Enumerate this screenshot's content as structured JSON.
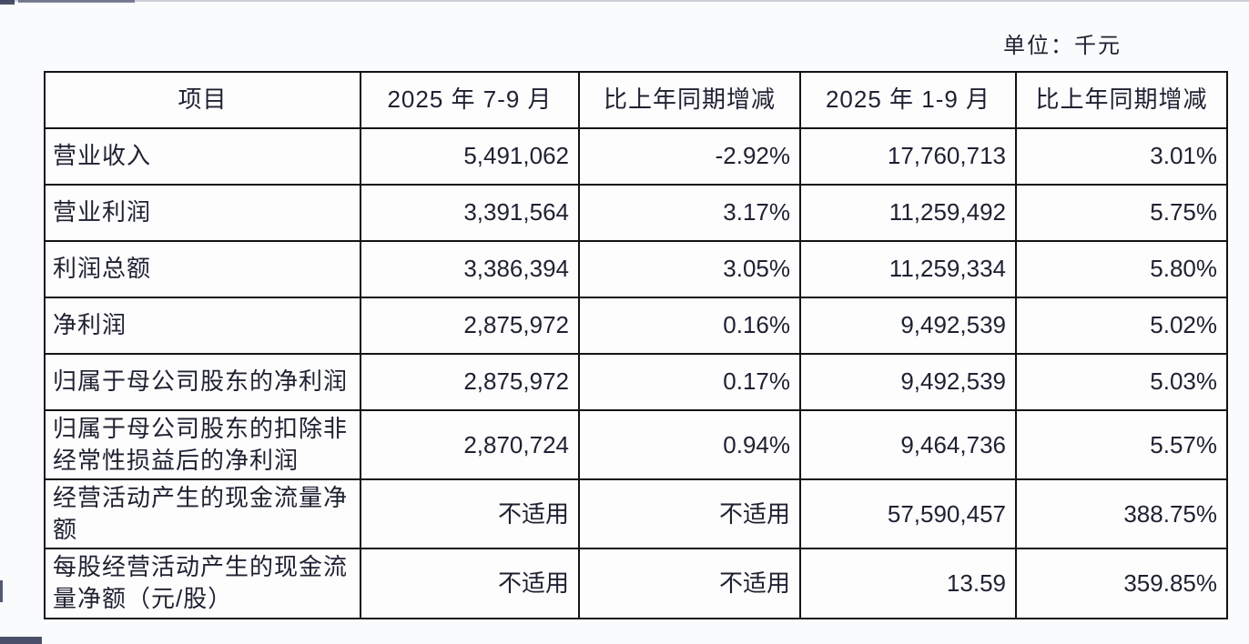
{
  "page": {
    "unit_label": "单位：千元"
  },
  "colors": {
    "bg": "#fafbfd",
    "cell_bg": "#fdfdfe",
    "border_color": "#131316",
    "text_color": "#1e2130"
  },
  "table": {
    "columns": [
      "项目",
      "2025 年 7-9 月",
      "比上年同期增减",
      "2025 年 1-9 月",
      "比上年同期增减"
    ],
    "rows": [
      [
        "营业收入",
        "5,491,062",
        "-2.92%",
        "17,760,713",
        "3.01%"
      ],
      [
        "营业利润",
        "3,391,564",
        "3.17%",
        "11,259,492",
        "5.75%"
      ],
      [
        "利润总额",
        "3,386,394",
        "3.05%",
        "11,259,334",
        "5.80%"
      ],
      [
        "净利润",
        "2,875,972",
        "0.16%",
        "9,492,539",
        "5.02%"
      ],
      [
        "归属于母公司股东的净利润",
        "2,875,972",
        "0.17%",
        "9,492,539",
        "5.03%"
      ],
      [
        "归属于母公司股东的扣除非经常性损益后的净利润",
        "2,870,724",
        "0.94%",
        "9,464,736",
        "5.57%"
      ],
      [
        "经营活动产生的现金流量净额",
        "不适用",
        "不适用",
        "57,590,457",
        "388.75%"
      ],
      [
        "每股经营活动产生的现金流量净额（元/股）",
        "不适用",
        "不适用",
        "13.59",
        "359.85%"
      ]
    ]
  }
}
